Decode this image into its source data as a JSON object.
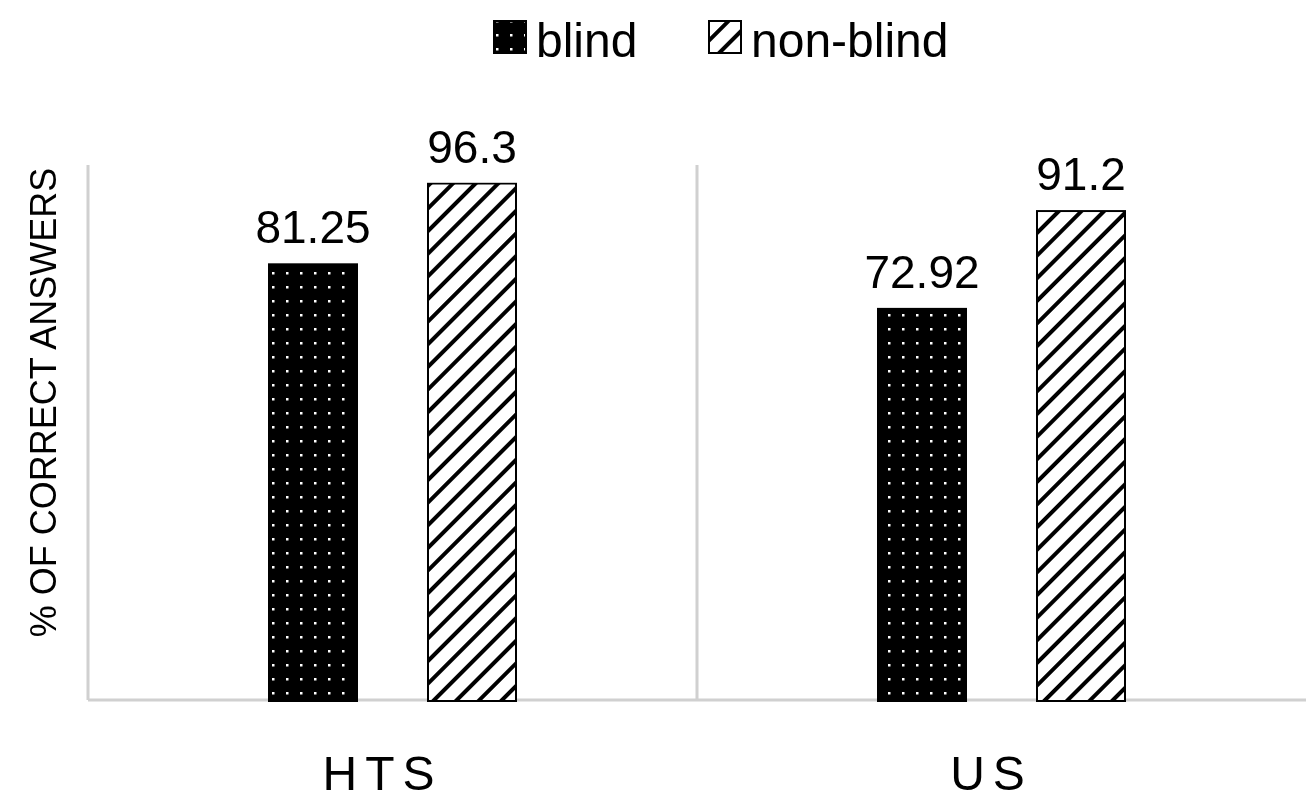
{
  "chart_data": {
    "type": "bar",
    "ylabel": "% OF CORRECT ANSWERS",
    "categories": [
      "HTS",
      "US"
    ],
    "series": [
      {
        "name": "blind",
        "color": "#000000",
        "values": [
          81.25,
          72.92
        ]
      },
      {
        "name": "non-blind",
        "color": "#ffffff",
        "values": [
          96.3,
          91.2
        ]
      }
    ],
    "ylim": [
      0,
      100
    ],
    "data_labels": true,
    "legend": "top",
    "grid": false
  }
}
